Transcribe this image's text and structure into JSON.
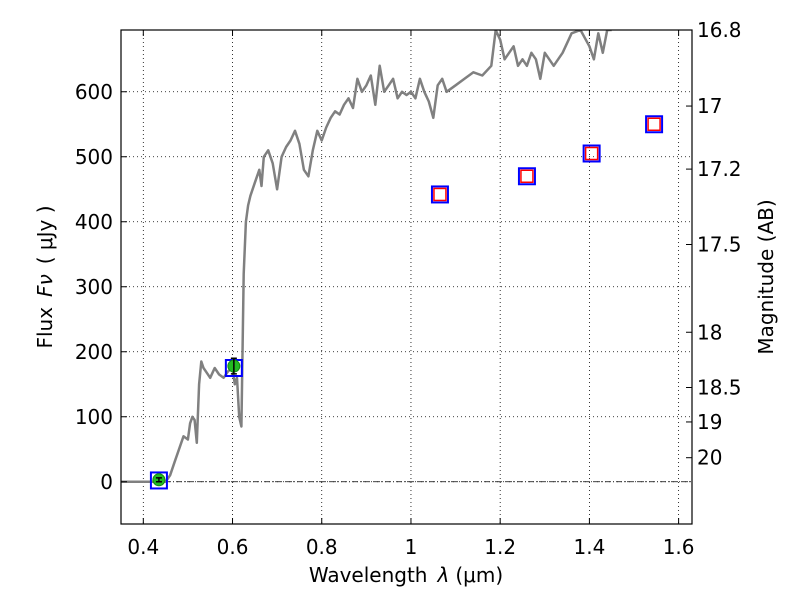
{
  "chart_data": {
    "type": "scatter",
    "xlabel_text": "Wavelength",
    "xlabel_symbol": "λ",
    "xlabel_unit": "(μm)",
    "ylabel_text": "Flux",
    "ylabel_symbol": "Fν",
    "ylabel_unit": "( μJy )",
    "y2label": "Magnitude (AB)",
    "xlim": [
      0.35,
      1.63
    ],
    "ylim": [
      -65,
      695
    ],
    "grid": true,
    "x_ticks": [
      {
        "value": 0.4,
        "label": "0.4"
      },
      {
        "value": 0.6,
        "label": "0.6"
      },
      {
        "value": 0.8,
        "label": "0.8"
      },
      {
        "value": 1.0,
        "label": "1"
      },
      {
        "value": 1.2,
        "label": "1.2"
      },
      {
        "value": 1.4,
        "label": "1.4"
      },
      {
        "value": 1.6,
        "label": "1.6"
      }
    ],
    "y_ticks": [
      {
        "value": 0,
        "label": "0"
      },
      {
        "value": 100,
        "label": "100"
      },
      {
        "value": 200,
        "label": "200"
      },
      {
        "value": 300,
        "label": "300"
      },
      {
        "value": 400,
        "label": "400"
      },
      {
        "value": 500,
        "label": "500"
      },
      {
        "value": 600,
        "label": "600"
      }
    ],
    "mag_ticks": [
      {
        "label": "16.8",
        "flux": 695
      },
      {
        "label": "17",
        "flux": 578
      },
      {
        "label": "17.2",
        "flux": 481
      },
      {
        "label": "17.5",
        "flux": 365
      },
      {
        "label": "18",
        "flux": 230
      },
      {
        "label": "18.5",
        "flux": 145
      },
      {
        "label": "19",
        "flux": 92
      },
      {
        "label": "20",
        "flux": 37
      }
    ],
    "series": [
      {
        "kind": "line",
        "color": "#808080",
        "x": [
          0.35,
          0.42,
          0.45,
          0.46,
          0.47,
          0.48,
          0.49,
          0.5,
          0.505,
          0.51,
          0.515,
          0.52,
          0.525,
          0.53,
          0.535,
          0.54,
          0.55,
          0.56,
          0.57,
          0.58,
          0.59,
          0.6,
          0.605,
          0.61,
          0.615,
          0.62,
          0.625,
          0.63,
          0.635,
          0.64,
          0.65,
          0.66,
          0.665,
          0.67,
          0.68,
          0.69,
          0.7,
          0.71,
          0.72,
          0.73,
          0.74,
          0.75,
          0.76,
          0.77,
          0.78,
          0.79,
          0.8,
          0.81,
          0.82,
          0.83,
          0.84,
          0.85,
          0.86,
          0.87,
          0.88,
          0.89,
          0.9,
          0.91,
          0.92,
          0.93,
          0.94,
          0.95,
          0.96,
          0.97,
          0.98,
          0.99,
          1.0,
          1.01,
          1.02,
          1.03,
          1.04,
          1.05,
          1.06,
          1.07,
          1.08,
          1.1,
          1.12,
          1.14,
          1.16,
          1.18,
          1.19,
          1.2,
          1.21,
          1.22,
          1.23,
          1.24,
          1.25,
          1.26,
          1.27,
          1.28,
          1.29,
          1.3,
          1.32,
          1.34,
          1.36,
          1.38,
          1.4,
          1.41,
          1.42,
          1.43,
          1.44,
          1.45
        ],
        "y": [
          0,
          0,
          0,
          10,
          30,
          50,
          70,
          65,
          90,
          100,
          95,
          60,
          150,
          185,
          175,
          170,
          160,
          175,
          165,
          160,
          170,
          175,
          150,
          160,
          100,
          85,
          320,
          400,
          425,
          440,
          460,
          480,
          455,
          500,
          510,
          490,
          450,
          500,
          515,
          525,
          540,
          520,
          480,
          470,
          510,
          540,
          525,
          545,
          560,
          570,
          565,
          580,
          590,
          575,
          620,
          600,
          610,
          625,
          580,
          640,
          600,
          610,
          620,
          590,
          600,
          595,
          600,
          590,
          620,
          600,
          585,
          560,
          610,
          620,
          600,
          610,
          620,
          630,
          625,
          640,
          695,
          680,
          650,
          660,
          670,
          640,
          650,
          640,
          660,
          650,
          620,
          660,
          640,
          660,
          690,
          695,
          670,
          650,
          690,
          660,
          695,
          695
        ]
      },
      {
        "kind": "markers-blue-square",
        "x": [
          0.435,
          0.603,
          1.065,
          1.26,
          1.405,
          1.545
        ],
        "y": [
          2,
          175,
          442,
          470,
          505,
          550
        ]
      },
      {
        "kind": "markers-red-square",
        "x": [
          1.065,
          1.26,
          1.405,
          1.545
        ],
        "y": [
          442,
          470,
          505,
          550
        ]
      },
      {
        "kind": "markers-green-circle",
        "x": [
          0.435,
          0.603
        ],
        "y": [
          3,
          178
        ],
        "yerr": [
          3,
          12
        ]
      }
    ]
  }
}
